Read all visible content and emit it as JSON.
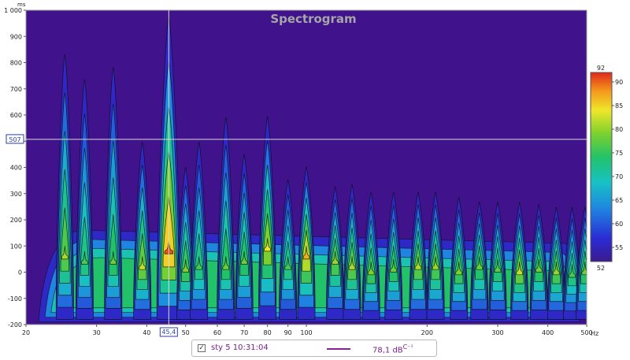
{
  "chart_data": {
    "type": "heatmap",
    "title": "Spectrogram",
    "ylabel": "ms",
    "xlabel": "Hz",
    "x_scale": "log",
    "xlim": [
      20,
      500
    ],
    "ylim": [
      -200,
      1000
    ],
    "x_ticks": [
      {
        "v": 20,
        "label": "20"
      },
      {
        "v": 30,
        "label": "30"
      },
      {
        "v": 40,
        "label": "40"
      },
      {
        "v": 50,
        "label": "50"
      },
      {
        "v": 60,
        "label": "60"
      },
      {
        "v": 70,
        "label": "70"
      },
      {
        "v": 80,
        "label": "80"
      },
      {
        "v": 90,
        "label": "90"
      },
      {
        "v": 100,
        "label": "100"
      },
      {
        "v": 200,
        "label": "200"
      },
      {
        "v": 300,
        "label": "300"
      },
      {
        "v": 400,
        "label": "400"
      },
      {
        "v": 500,
        "label": "500"
      }
    ],
    "y_ticks": [
      {
        "v": 1000,
        "label": "1 000"
      },
      {
        "v": 900,
        "label": "900"
      },
      {
        "v": 800,
        "label": "800"
      },
      {
        "v": 700,
        "label": "700"
      },
      {
        "v": 600,
        "label": "600"
      },
      {
        "v": 500,
        "label": "500"
      },
      {
        "v": 400,
        "label": "400"
      },
      {
        "v": 300,
        "label": "300"
      },
      {
        "v": 200,
        "label": "200"
      },
      {
        "v": 100,
        "label": "100"
      },
      {
        "v": 0,
        "label": "0"
      },
      {
        "v": -100,
        "label": "-100"
      },
      {
        "v": -200,
        "label": "-200"
      }
    ],
    "cursor": {
      "x": 45.4,
      "x_label": "45,4",
      "y": 507,
      "y_label": "507"
    },
    "colorbar": {
      "min": 52,
      "max": 92,
      "min_label": "52",
      "max_label": "92",
      "ticks": [
        {
          "v": 90,
          "label": "90"
        },
        {
          "v": 85,
          "label": "85"
        },
        {
          "v": 80,
          "label": "80"
        },
        {
          "v": 75,
          "label": "75"
        },
        {
          "v": 70,
          "label": "70"
        },
        {
          "v": 65,
          "label": "65"
        },
        {
          "v": 60,
          "label": "60"
        },
        {
          "v": 55,
          "label": "55"
        }
      ]
    },
    "peaks": [
      {
        "freq": 25,
        "time": 80,
        "level": 79,
        "decay_ms": 850
      },
      {
        "freq": 28,
        "time": 60,
        "level": 74,
        "decay_ms": 750
      },
      {
        "freq": 33,
        "time": 60,
        "level": 76,
        "decay_ms": 800
      },
      {
        "freq": 39,
        "time": 40,
        "level": 80,
        "decay_ms": 500
      },
      {
        "freq": 45.4,
        "time": 100,
        "level": 90,
        "decay_ms": 1000
      },
      {
        "freq": 50,
        "time": 30,
        "level": 77,
        "decay_ms": 400
      },
      {
        "freq": 54,
        "time": 40,
        "level": 74,
        "decay_ms": 500
      },
      {
        "freq": 63,
        "time": 40,
        "level": 76,
        "decay_ms": 600
      },
      {
        "freq": 70,
        "time": 60,
        "level": 76,
        "decay_ms": 450
      },
      {
        "freq": 80,
        "time": 110,
        "level": 82,
        "decay_ms": 600
      },
      {
        "freq": 90,
        "time": 40,
        "level": 74,
        "decay_ms": 350
      },
      {
        "freq": 100,
        "time": 80,
        "level": 85,
        "decay_ms": 400
      },
      {
        "freq": 118,
        "time": 60,
        "level": 78,
        "decay_ms": 320
      },
      {
        "freq": 130,
        "time": 40,
        "level": 79,
        "decay_ms": 330
      },
      {
        "freq": 145,
        "time": 20,
        "level": 77,
        "decay_ms": 300
      },
      {
        "freq": 165,
        "time": 30,
        "level": 76,
        "decay_ms": 300
      },
      {
        "freq": 190,
        "time": 40,
        "level": 79,
        "decay_ms": 300
      },
      {
        "freq": 210,
        "time": 40,
        "level": 78,
        "decay_ms": 300
      },
      {
        "freq": 240,
        "time": 20,
        "level": 77,
        "decay_ms": 280
      },
      {
        "freq": 270,
        "time": 40,
        "level": 76,
        "decay_ms": 260
      },
      {
        "freq": 300,
        "time": 30,
        "level": 75,
        "decay_ms": 260
      },
      {
        "freq": 340,
        "time": 20,
        "level": 80,
        "decay_ms": 260
      },
      {
        "freq": 380,
        "time": 30,
        "level": 76,
        "decay_ms": 250
      },
      {
        "freq": 420,
        "time": 20,
        "level": 78,
        "decay_ms": 240
      },
      {
        "freq": 460,
        "time": 10,
        "level": 74,
        "decay_ms": 240
      },
      {
        "freq": 495,
        "time": 20,
        "level": 76,
        "decay_ms": 240
      }
    ]
  },
  "legend": {
    "checked": true,
    "check_glyph": "✓",
    "series_label": "sty 5 10:31:04",
    "series_color": "#8e1f9a",
    "value_label": "78,1 dB",
    "value_suffix": "C⁻¹"
  },
  "colors": {
    "background": "#40128c",
    "frame": "#9a9a9a",
    "cursor": "#d9d9d9",
    "title": "#a6a6a6"
  }
}
